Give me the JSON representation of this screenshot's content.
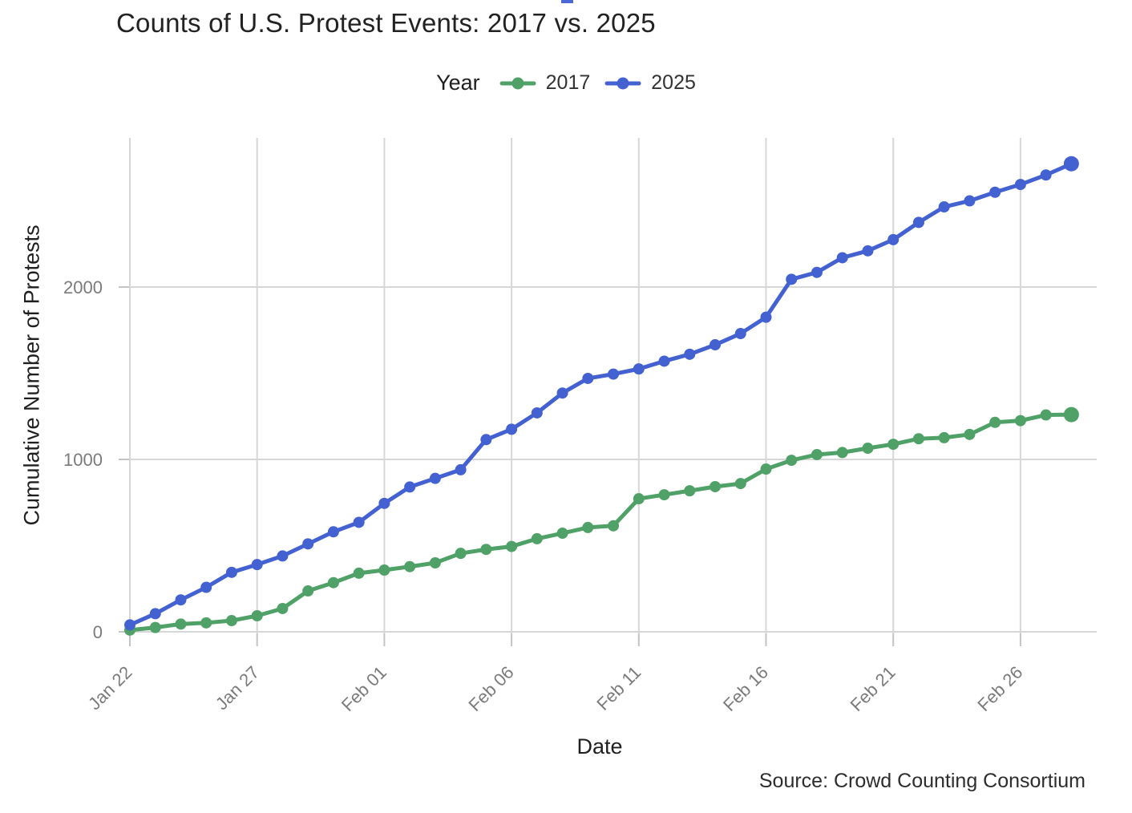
{
  "page": {
    "title": "Counts of U.S. Protest Events: 2017 vs. 2025",
    "source": "Source: Crowd Counting Consortium"
  },
  "legend": {
    "title": "Year",
    "position": "top-center",
    "items": [
      {
        "label": "2017",
        "color": "#4fa168"
      },
      {
        "label": "2025",
        "color": "#4461d2"
      }
    ]
  },
  "axes": {
    "x_label": "Date",
    "y_label": "Cumulative Number of Protests",
    "y_tick_labels": [
      "0",
      "1000",
      "2000"
    ],
    "x_tick_labels": [
      "Jan 22",
      "Jan 27",
      "Feb 01",
      "Feb 06",
      "Feb 11",
      "Feb 16",
      "Feb 21",
      "Feb 26"
    ],
    "tick_text_color": "#7b7b7b",
    "gridline_color": "#d7d7d7"
  },
  "artifact": {
    "note": "small blue line fragment at top of screenshot",
    "color": "#4a68d6"
  },
  "chart_data": {
    "type": "line",
    "title": "Counts of U.S. Protest Events: 2017 vs. 2025",
    "xlabel": "Date",
    "ylabel": "Cumulative Number of Protests",
    "grid": true,
    "legend_position": "top",
    "ylim": [
      0,
      2865
    ],
    "y_ticks": [
      0,
      1000,
      2000
    ],
    "x": [
      "Jan 22",
      "Jan 23",
      "Jan 24",
      "Jan 25",
      "Jan 26",
      "Jan 27",
      "Jan 28",
      "Jan 29",
      "Jan 30",
      "Jan 31",
      "Feb 01",
      "Feb 02",
      "Feb 03",
      "Feb 04",
      "Feb 05",
      "Feb 06",
      "Feb 07",
      "Feb 08",
      "Feb 09",
      "Feb 10",
      "Feb 11",
      "Feb 12",
      "Feb 13",
      "Feb 14",
      "Feb 15",
      "Feb 16",
      "Feb 17",
      "Feb 18",
      "Feb 19",
      "Feb 20",
      "Feb 21",
      "Feb 22",
      "Feb 23",
      "Feb 24",
      "Feb 25",
      "Feb 26",
      "Feb 27",
      "Feb 28"
    ],
    "x_tick_labels": [
      "Jan 22",
      "Jan 27",
      "Feb 01",
      "Feb 06",
      "Feb 11",
      "Feb 16",
      "Feb 21",
      "Feb 26"
    ],
    "series": [
      {
        "name": "2017",
        "color": "#4fa168",
        "values": [
          10,
          25,
          45,
          52,
          65,
          93,
          135,
          237,
          285,
          340,
          358,
          378,
          400,
          455,
          478,
          495,
          540,
          572,
          605,
          615,
          772,
          795,
          818,
          842,
          860,
          944,
          995,
          1028,
          1040,
          1065,
          1088,
          1120,
          1126,
          1145,
          1215,
          1225,
          1258,
          1260
        ]
      },
      {
        "name": "2025",
        "color": "#4461d2",
        "values": [
          40,
          105,
          185,
          258,
          345,
          390,
          440,
          510,
          580,
          635,
          745,
          840,
          890,
          940,
          1115,
          1175,
          1270,
          1385,
          1470,
          1495,
          1525,
          1570,
          1610,
          1665,
          1730,
          1825,
          2045,
          2085,
          2170,
          2210,
          2275,
          2375,
          2465,
          2500,
          2550,
          2595,
          2650,
          2715
        ]
      }
    ]
  }
}
